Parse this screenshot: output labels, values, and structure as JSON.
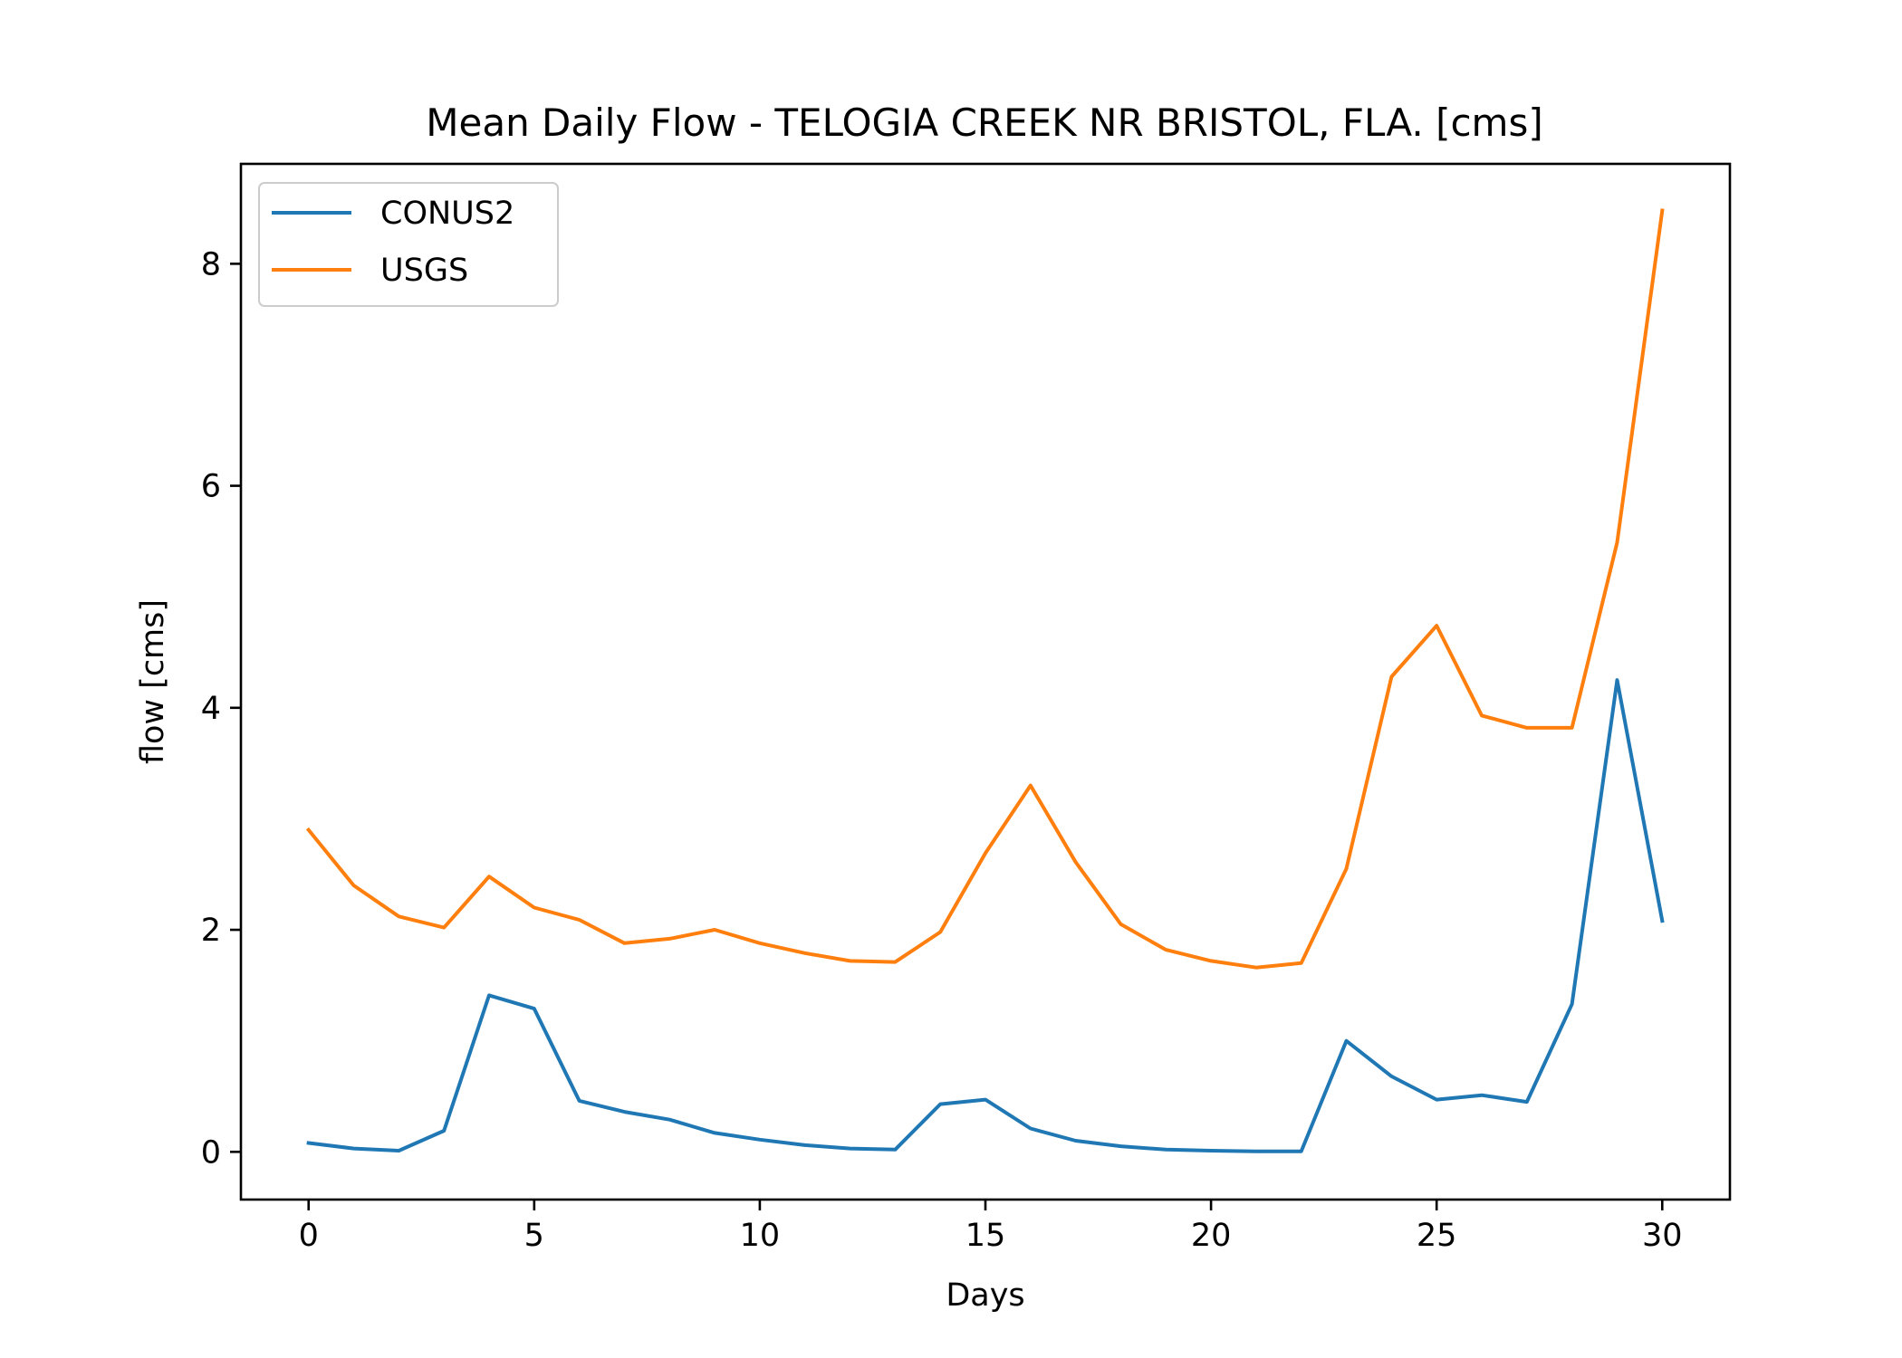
{
  "chart_data": {
    "type": "line",
    "title": "Mean Daily Flow - TELOGIA CREEK NR BRISTOL, FLA. [cms]",
    "xlabel": "Days",
    "ylabel": "flow [cms]",
    "xlim": [
      -1.5,
      31.5
    ],
    "ylim": [
      -0.43,
      8.9
    ],
    "xticks": [
      0,
      5,
      10,
      15,
      20,
      25,
      30
    ],
    "yticks": [
      0,
      2,
      4,
      6,
      8
    ],
    "grid": false,
    "legend_position": "top-left",
    "x": [
      0,
      1,
      2,
      3,
      4,
      5,
      6,
      7,
      8,
      9,
      10,
      11,
      12,
      13,
      14,
      15,
      16,
      17,
      18,
      19,
      20,
      21,
      22,
      23,
      24,
      25,
      26,
      27,
      28,
      29,
      30
    ],
    "series": [
      {
        "name": "CONUS2",
        "color": "#1f77b4",
        "values": [
          0.08,
          0.03,
          0.01,
          0.19,
          1.41,
          1.29,
          0.46,
          0.36,
          0.29,
          0.17,
          0.11,
          0.06,
          0.03,
          0.02,
          0.43,
          0.47,
          0.21,
          0.1,
          0.05,
          0.02,
          0.01,
          0.005,
          0.005,
          1.0,
          0.68,
          0.47,
          0.51,
          0.45,
          1.33,
          4.25,
          2.08
        ]
      },
      {
        "name": "USGS",
        "color": "#ff7f0e",
        "values": [
          2.9,
          2.4,
          2.12,
          2.02,
          2.48,
          2.2,
          2.09,
          1.88,
          1.92,
          2.0,
          1.88,
          1.79,
          1.72,
          1.71,
          1.98,
          2.69,
          3.3,
          2.61,
          2.05,
          1.82,
          1.72,
          1.66,
          1.7,
          2.55,
          4.28,
          4.74,
          3.93,
          3.82,
          3.82,
          5.49,
          8.48
        ]
      }
    ]
  }
}
